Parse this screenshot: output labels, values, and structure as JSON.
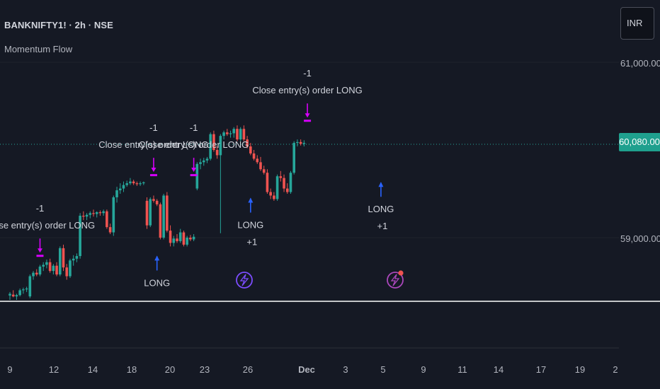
{
  "header": {
    "symbol_title": "BANKNIFTY1! · 2h · NSE",
    "indicator_name": "Momentum Flow",
    "currency": "INR"
  },
  "price_axis": {
    "ticks": [
      "61,000.00",
      "59,000.00"
    ],
    "current_price_label": "60,080.00"
  },
  "time_axis": {
    "ticks": [
      "9",
      "12",
      "14",
      "18",
      "20",
      "23",
      "26",
      "Dec",
      "3",
      "5",
      "9",
      "11",
      "14",
      "17",
      "19",
      "2"
    ]
  },
  "colors": {
    "background": "#151924",
    "bull": "#26a69a",
    "bear": "#ef5350",
    "exit_marker": "#d500f9",
    "entry_marker": "#2962ff",
    "price_line": "#26a69a"
  },
  "chart_data": {
    "type": "candlestick",
    "y_axis_ticks": [
      61000,
      59000
    ],
    "last_price": 60080,
    "candles": [
      {
        "o": 58340,
        "h": 58380,
        "l": 58290,
        "c": 58360
      },
      {
        "o": 58350,
        "h": 58400,
        "l": 58320,
        "c": 58330
      },
      {
        "o": 58330,
        "h": 58360,
        "l": 58290,
        "c": 58345
      },
      {
        "o": 58345,
        "h": 58420,
        "l": 58330,
        "c": 58400
      },
      {
        "o": 58400,
        "h": 58430,
        "l": 58360,
        "c": 58410
      },
      {
        "o": 58410,
        "h": 58440,
        "l": 58380,
        "c": 58420
      },
      {
        "o": 58330,
        "h": 58580,
        "l": 58310,
        "c": 58560
      },
      {
        "o": 58560,
        "h": 58620,
        "l": 58520,
        "c": 58600
      },
      {
        "o": 58600,
        "h": 58640,
        "l": 58560,
        "c": 58580
      },
      {
        "o": 58580,
        "h": 58690,
        "l": 58560,
        "c": 58670
      },
      {
        "o": 58670,
        "h": 58720,
        "l": 58620,
        "c": 58690
      },
      {
        "o": 58690,
        "h": 58750,
        "l": 58650,
        "c": 58720
      },
      {
        "o": 58720,
        "h": 58760,
        "l": 58600,
        "c": 58620
      },
      {
        "o": 58620,
        "h": 58700,
        "l": 58580,
        "c": 58680
      },
      {
        "o": 58680,
        "h": 58720,
        "l": 58560,
        "c": 58580
      },
      {
        "o": 58580,
        "h": 58900,
        "l": 58560,
        "c": 58880
      },
      {
        "o": 58880,
        "h": 58920,
        "l": 58620,
        "c": 58660
      },
      {
        "o": 58660,
        "h": 58700,
        "l": 58520,
        "c": 58560
      },
      {
        "o": 58560,
        "h": 58760,
        "l": 58540,
        "c": 58740
      },
      {
        "o": 58740,
        "h": 58800,
        "l": 58680,
        "c": 58760
      },
      {
        "o": 58760,
        "h": 58820,
        "l": 58720,
        "c": 58790
      },
      {
        "o": 58790,
        "h": 59280,
        "l": 58760,
        "c": 59250
      },
      {
        "o": 59250,
        "h": 59300,
        "l": 59200,
        "c": 59240
      },
      {
        "o": 59240,
        "h": 59280,
        "l": 59200,
        "c": 59260
      },
      {
        "o": 59260,
        "h": 59300,
        "l": 59220,
        "c": 59280
      },
      {
        "o": 59280,
        "h": 59320,
        "l": 59240,
        "c": 59270
      },
      {
        "o": 59270,
        "h": 59300,
        "l": 59230,
        "c": 59290
      },
      {
        "o": 59290,
        "h": 59310,
        "l": 59250,
        "c": 59280
      },
      {
        "o": 59280,
        "h": 59320,
        "l": 59250,
        "c": 59300
      },
      {
        "o": 59300,
        "h": 59320,
        "l": 59100,
        "c": 59120
      },
      {
        "o": 59120,
        "h": 59160,
        "l": 59040,
        "c": 59060
      },
      {
        "o": 59060,
        "h": 59480,
        "l": 59020,
        "c": 59460
      },
      {
        "o": 59460,
        "h": 59580,
        "l": 59400,
        "c": 59540
      },
      {
        "o": 59540,
        "h": 59620,
        "l": 59500,
        "c": 59560
      },
      {
        "o": 59560,
        "h": 59640,
        "l": 59520,
        "c": 59600
      },
      {
        "o": 59600,
        "h": 59650,
        "l": 59580,
        "c": 59620
      },
      {
        "o": 59620,
        "h": 59680,
        "l": 59600,
        "c": 59640
      },
      {
        "o": 59640,
        "h": 59660,
        "l": 59600,
        "c": 59620
      },
      {
        "o": 59620,
        "h": 59640,
        "l": 59590,
        "c": 59610
      },
      {
        "o": 59610,
        "h": 59640,
        "l": 59590,
        "c": 59620
      },
      {
        "o": 59620,
        "h": 59640,
        "l": 59600,
        "c": 59630
      },
      {
        "o": 59420,
        "h": 59460,
        "l": 59100,
        "c": 59140
      },
      {
        "o": 59140,
        "h": 59460,
        "l": 59120,
        "c": 59440
      },
      {
        "o": 59440,
        "h": 59480,
        "l": 59400,
        "c": 59420
      },
      {
        "o": 59420,
        "h": 59440,
        "l": 59360,
        "c": 59380
      },
      {
        "o": 59380,
        "h": 59400,
        "l": 58980,
        "c": 59000
      },
      {
        "o": 59000,
        "h": 59500,
        "l": 58980,
        "c": 59480
      },
      {
        "o": 59480,
        "h": 59520,
        "l": 59060,
        "c": 59080
      },
      {
        "o": 59080,
        "h": 59140,
        "l": 58900,
        "c": 58940
      },
      {
        "o": 58940,
        "h": 59020,
        "l": 58900,
        "c": 58990
      },
      {
        "o": 58990,
        "h": 59040,
        "l": 58940,
        "c": 58960
      },
      {
        "o": 58960,
        "h": 59100,
        "l": 58940,
        "c": 59060
      },
      {
        "o": 59060,
        "h": 59080,
        "l": 58900,
        "c": 58920
      },
      {
        "o": 58920,
        "h": 59020,
        "l": 58900,
        "c": 59000
      },
      {
        "o": 59000,
        "h": 59030,
        "l": 58960,
        "c": 58980
      },
      {
        "o": 58980,
        "h": 59040,
        "l": 58960,
        "c": 59010
      },
      {
        "o": 59560,
        "h": 59860,
        "l": 59540,
        "c": 59840
      },
      {
        "o": 59840,
        "h": 59900,
        "l": 59780,
        "c": 59860
      },
      {
        "o": 59860,
        "h": 59910,
        "l": 59820,
        "c": 59880
      },
      {
        "o": 59880,
        "h": 59920,
        "l": 59850,
        "c": 59900
      },
      {
        "o": 59900,
        "h": 60200,
        "l": 59880,
        "c": 60180
      },
      {
        "o": 60180,
        "h": 60220,
        "l": 59980,
        "c": 60000
      },
      {
        "o": 60000,
        "h": 60040,
        "l": 59900,
        "c": 59940
      },
      {
        "o": 59940,
        "h": 60180,
        "l": 59050,
        "c": 60160
      },
      {
        "o": 60160,
        "h": 60220,
        "l": 60120,
        "c": 60200
      },
      {
        "o": 60200,
        "h": 60240,
        "l": 60160,
        "c": 60180
      },
      {
        "o": 60180,
        "h": 60220,
        "l": 60140,
        "c": 60190
      },
      {
        "o": 60190,
        "h": 60260,
        "l": 60140,
        "c": 60240
      },
      {
        "o": 60240,
        "h": 60280,
        "l": 60100,
        "c": 60120
      },
      {
        "o": 60120,
        "h": 60260,
        "l": 60100,
        "c": 60240
      },
      {
        "o": 60240,
        "h": 60280,
        "l": 60100,
        "c": 60120
      },
      {
        "o": 60120,
        "h": 60160,
        "l": 60020,
        "c": 60040
      },
      {
        "o": 60040,
        "h": 60080,
        "l": 59940,
        "c": 59960
      },
      {
        "o": 59960,
        "h": 60000,
        "l": 59880,
        "c": 59900
      },
      {
        "o": 59900,
        "h": 59940,
        "l": 59840,
        "c": 59860
      },
      {
        "o": 59860,
        "h": 59920,
        "l": 59760,
        "c": 59780
      },
      {
        "o": 59780,
        "h": 59820,
        "l": 59720,
        "c": 59740
      },
      {
        "o": 59740,
        "h": 59780,
        "l": 59500,
        "c": 59520
      },
      {
        "o": 59520,
        "h": 59560,
        "l": 59440,
        "c": 59480
      },
      {
        "o": 59480,
        "h": 59520,
        "l": 59420,
        "c": 59440
      },
      {
        "o": 59440,
        "h": 59720,
        "l": 59420,
        "c": 59700
      },
      {
        "o": 59700,
        "h": 59760,
        "l": 59640,
        "c": 59680
      },
      {
        "o": 59680,
        "h": 59720,
        "l": 59520,
        "c": 59560
      },
      {
        "o": 59560,
        "h": 59620,
        "l": 59500,
        "c": 59520
      },
      {
        "o": 59520,
        "h": 59760,
        "l": 59500,
        "c": 59740
      },
      {
        "o": 59740,
        "h": 60100,
        "l": 59720,
        "c": 60080
      },
      {
        "o": 60080,
        "h": 60120,
        "l": 60040,
        "c": 60090
      },
      {
        "o": 60090,
        "h": 60120,
        "l": 60050,
        "c": 60070
      },
      {
        "o": 60070,
        "h": 60110,
        "l": 60040,
        "c": 60080
      }
    ],
    "signals": [
      {
        "type": "exit",
        "bar": 9,
        "label_top": "-1",
        "label_bottom": "Close entry(s) order LONG",
        "price": 58700
      },
      {
        "type": "exit",
        "bar": 43,
        "label_top": "-1",
        "label_bottom": "Close entry(s) order LONG",
        "price": 59620
      },
      {
        "type": "exit",
        "bar": 55,
        "label_top": "-1",
        "label_bottom": "Close entry(s) order LONG",
        "price": 59620
      },
      {
        "type": "exit",
        "bar": 89,
        "label_top": "-1",
        "label_bottom": "Close entry(s) order LONG",
        "price": 60240
      },
      {
        "type": "entry",
        "bar": 44,
        "label_top": "LONG",
        "label_bottom": "",
        "price": 58900
      },
      {
        "type": "entry",
        "bar": 72,
        "label_top": "LONG",
        "label_bottom": "+1",
        "price": 59560
      },
      {
        "type": "entry",
        "bar": 111,
        "label_top": "LONG",
        "label_bottom": "+1",
        "price": 59740
      }
    ]
  }
}
